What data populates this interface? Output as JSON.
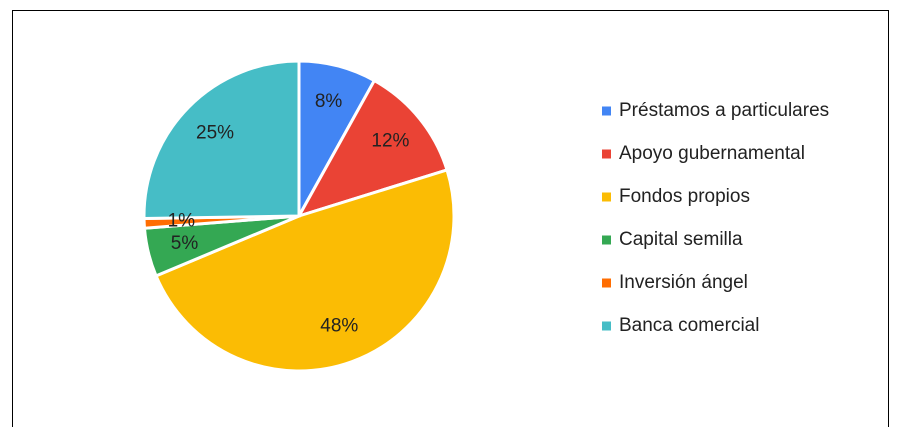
{
  "chart_data": {
    "type": "pie",
    "categories": [
      "Préstamos a particulares",
      "Apoyo gubernamental",
      "Fondos propios",
      "Capital semilla",
      "Inversión ángel",
      "Banca comercial"
    ],
    "values": [
      8,
      12,
      48,
      5,
      1,
      25
    ],
    "value_labels": [
      "8%",
      "12%",
      "48%",
      "5%",
      "1%",
      "25%"
    ],
    "colors": [
      "#4285f4",
      "#ea4335",
      "#fbbc04",
      "#34a853",
      "#ff6d01",
      "#46bdc6"
    ],
    "legend": "right"
  }
}
